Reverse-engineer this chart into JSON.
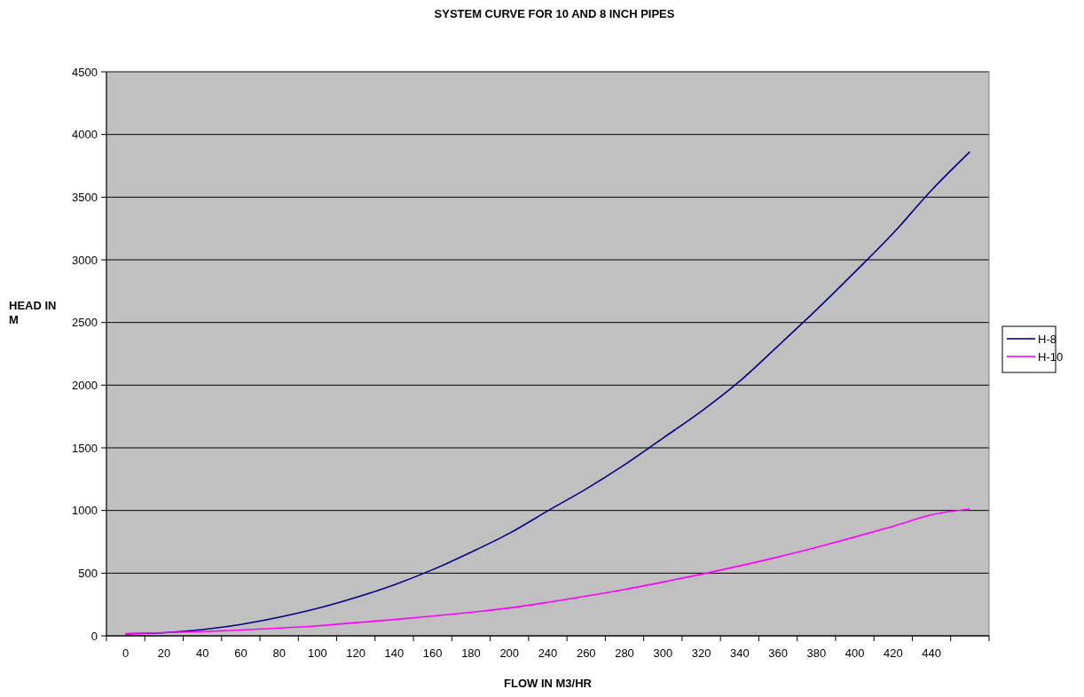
{
  "chart_data": {
    "type": "line",
    "title": "SYSTEM CURVE FOR 10 AND 8 INCH PIPES",
    "xlabel": "FLOW IN M3/HR",
    "ylabel": "HEAD IN M",
    "categories": [
      "0",
      "20",
      "40",
      "60",
      "80",
      "100",
      "120",
      "140",
      "160",
      "180",
      "200",
      "240",
      "260",
      "280",
      "300",
      "320",
      "340",
      "360",
      "380",
      "400",
      "420",
      "440",
      null
    ],
    "series": [
      {
        "name": "H-8",
        "color": "#000080",
        "values": [
          15,
          25,
          50,
          90,
          148,
          219,
          306,
          407,
          528,
          667,
          818,
          997,
          1172,
          1365,
          1577,
          1791,
          2031,
          2313,
          2601,
          2902,
          3212,
          3555,
          3862
        ]
      },
      {
        "name": "H-10",
        "color": "#ff00ff",
        "values": [
          18,
          25,
          34,
          46,
          62,
          80,
          105,
          130,
          157,
          188,
          222,
          267,
          317,
          370,
          429,
          491,
          558,
          629,
          706,
          788,
          874,
          966,
          1012
        ]
      }
    ],
    "ylim": [
      0,
      4500
    ],
    "yticks": [
      0,
      500,
      1000,
      1500,
      2000,
      2500,
      3000,
      3500,
      4000,
      4500
    ],
    "grid": "y",
    "legend": "right",
    "line_style": "solid",
    "marker": "none"
  }
}
